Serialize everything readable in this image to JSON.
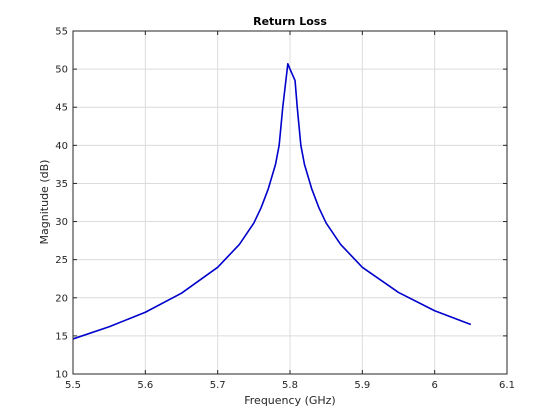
{
  "chart_data": {
    "type": "line",
    "title": "Return Loss",
    "xlabel": "Frequency (GHz)",
    "ylabel": "Magnitude (dB)",
    "xlim": [
      5.5,
      6.1
    ],
    "ylim": [
      10,
      55
    ],
    "xticks": [
      5.5,
      5.6,
      5.7,
      5.8,
      5.9,
      6.0,
      6.1
    ],
    "yticks": [
      10,
      15,
      20,
      25,
      30,
      35,
      40,
      45,
      50,
      55
    ],
    "xtick_labels": [
      "5.5",
      "5.6",
      "5.7",
      "5.8",
      "5.9",
      "6",
      "6.1"
    ],
    "ytick_labels": [
      "10",
      "15",
      "20",
      "25",
      "30",
      "35",
      "40",
      "45",
      "50",
      "55"
    ],
    "grid": true,
    "line_color": "#0000cc",
    "series": [
      {
        "x": [
          5.5,
          5.55,
          5.6,
          5.65,
          5.7,
          5.73,
          5.75,
          5.76,
          5.77,
          5.78,
          5.785,
          5.79,
          5.797,
          5.8,
          5.807,
          5.81,
          5.815,
          5.82,
          5.83,
          5.84,
          5.85,
          5.87,
          5.9,
          5.95,
          6.0,
          6.05
        ],
        "y": [
          14.6,
          16.2,
          18.1,
          20.6,
          24.0,
          27.0,
          29.8,
          31.8,
          34.3,
          37.5,
          40.0,
          45.0,
          50.7,
          50.0,
          48.5,
          45.0,
          40.0,
          37.5,
          34.3,
          31.8,
          29.8,
          27.0,
          24.0,
          20.7,
          18.3,
          16.5
        ]
      }
    ]
  }
}
